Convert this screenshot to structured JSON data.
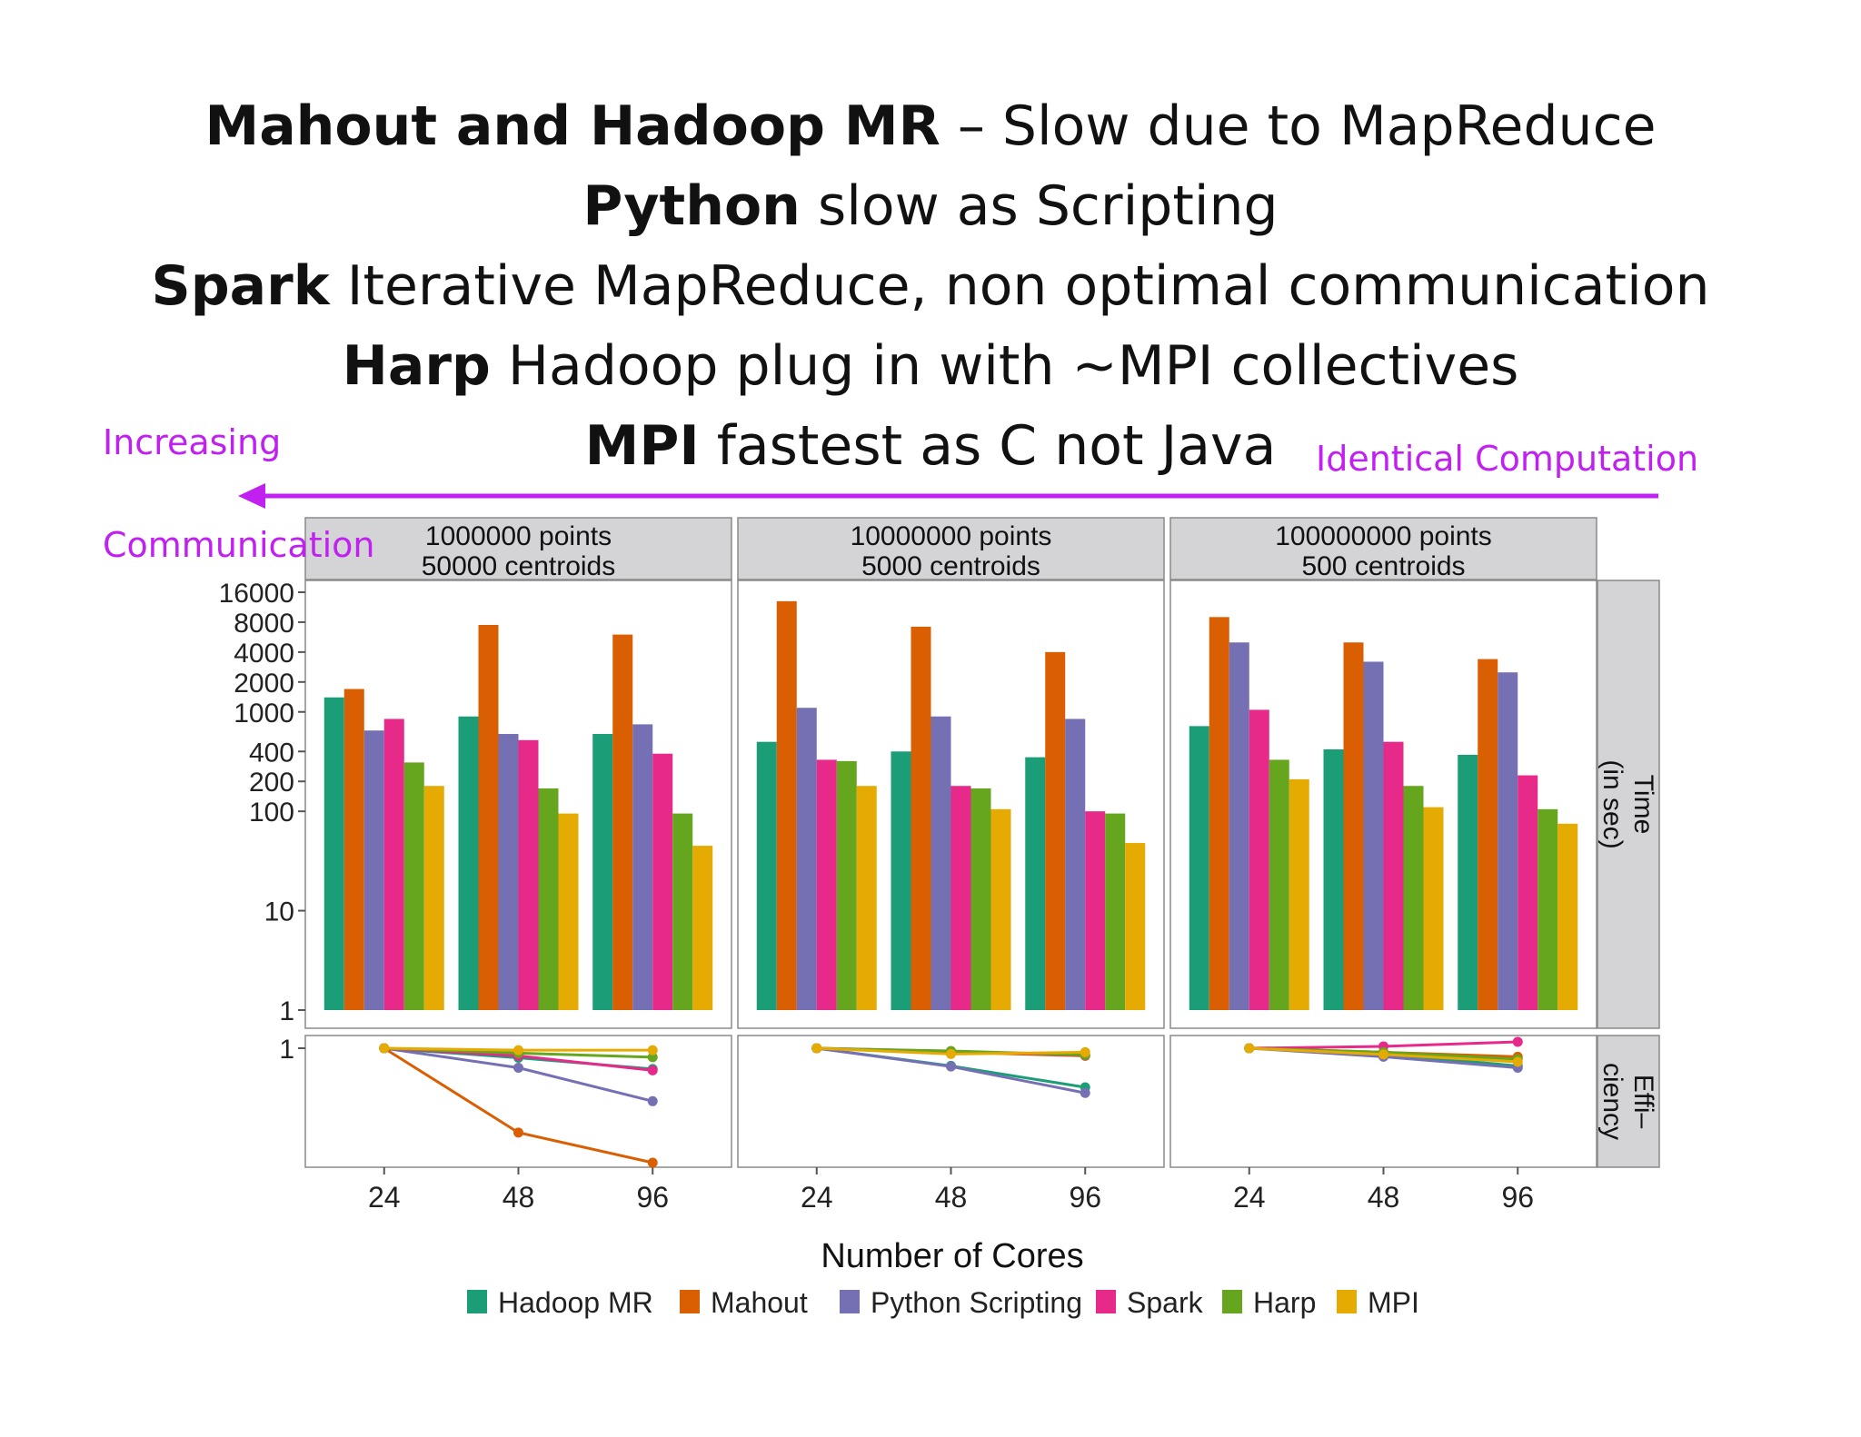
{
  "title_lines": [
    {
      "bold": "Mahout and Hadoop MR",
      "rest": " – Slow due to MapReduce"
    },
    {
      "bold": "Python",
      "rest": " slow as Scripting"
    },
    {
      "bold": "Spark",
      "rest": " Iterative MapReduce, non optimal communication"
    },
    {
      "bold": "Harp",
      "rest": " Hadoop plug in with ~MPI collectives"
    },
    {
      "bold": "MPI",
      "rest": " fastest as C not Java"
    }
  ],
  "annotations": {
    "left_top": "Increasing",
    "left_bottom": "Communication",
    "right": "Identical Computation",
    "arrow_color": "#c020f0"
  },
  "chart_data": {
    "type": "bar",
    "x_label": "Number of Cores",
    "y_label_time": "Time\n(in sec)",
    "y_label_eff": "Effi–\nciency",
    "y_scale": "log",
    "y_ticks": [
      1,
      10,
      100,
      200,
      400,
      1000,
      2000,
      4000,
      8000,
      16000
    ],
    "y_tick_labels": [
      "1",
      "10",
      "100",
      "200",
      "400",
      "1000",
      "2000",
      "4000",
      "8000",
      "16000"
    ],
    "eff_tick_label": "1",
    "categories": [
      "24",
      "48",
      "96"
    ],
    "series_names": [
      "Hadoop MR",
      "Mahout",
      "Python Scripting",
      "Spark",
      "Harp",
      "MPI"
    ],
    "colors": [
      "#1b9e77",
      "#d95f02",
      "#7570b3",
      "#e7298a",
      "#66a61e",
      "#e6ab02"
    ],
    "panels": [
      {
        "label_line1": "1000000 points",
        "label_line2": "50000 centroids",
        "time": [
          [
            1400,
            900,
            600
          ],
          [
            1700,
            7500,
            6000
          ],
          [
            650,
            600,
            750
          ],
          [
            850,
            520,
            380
          ],
          [
            310,
            170,
            95
          ],
          [
            180,
            95,
            45
          ]
        ],
        "efficiency": [
          [
            1,
            0.78,
            0.58
          ],
          [
            1,
            0.11,
            0.05
          ],
          [
            1,
            0.6,
            0.25
          ],
          [
            1,
            0.82,
            0.56
          ],
          [
            1,
            0.88,
            0.79
          ],
          [
            1,
            0.95,
            0.95
          ]
        ]
      },
      {
        "label_line1": "10000000 points",
        "label_line2": "5000 centroids",
        "time": [
          [
            500,
            400,
            350
          ],
          [
            13000,
            7200,
            4000
          ],
          [
            1100,
            900,
            850
          ],
          [
            330,
            180,
            100
          ],
          [
            320,
            170,
            95
          ],
          [
            180,
            105,
            48
          ]
        ],
        "efficiency": [
          [
            1,
            0.63,
            0.36
          ],
          [
            1,
            0.9,
            0.82
          ],
          [
            1,
            0.62,
            0.31
          ],
          [
            1,
            0.92,
            0.83
          ],
          [
            1,
            0.93,
            0.84
          ],
          [
            1,
            0.86,
            0.9
          ]
        ]
      },
      {
        "label_line1": "100000000 points",
        "label_line2": "500 centroids",
        "time": [
          [
            720,
            420,
            370
          ],
          [
            9000,
            5000,
            3400
          ],
          [
            5000,
            3200,
            2500
          ],
          [
            1050,
            500,
            230
          ],
          [
            330,
            180,
            105
          ],
          [
            210,
            110,
            75
          ]
        ],
        "efficiency": [
          [
            1,
            0.86,
            0.63
          ],
          [
            1,
            0.9,
            0.8
          ],
          [
            1,
            0.8,
            0.6
          ],
          [
            1,
            1.05,
            1.18
          ],
          [
            1,
            0.9,
            0.75
          ],
          [
            1,
            0.85,
            0.7
          ]
        ]
      }
    ]
  }
}
